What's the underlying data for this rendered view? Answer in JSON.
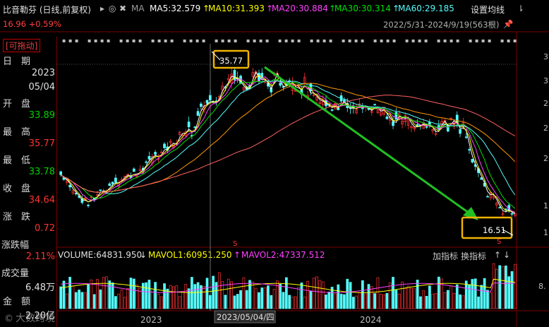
{
  "header": {
    "title": "比音勒芬 (日线,前复权)",
    "ma_label": "MA",
    "ma5": "MA5:32.579",
    "ma10": "MA10:31.393",
    "ma20": "MA20:30.884",
    "ma30": "MA30:30.314",
    "ma60": "MA60:29.185",
    "settings": "设置均线",
    "price_change": "16.96 +0.59%",
    "date_range": "2022/5/31-2024/9/19(563根)"
  },
  "left_panel": {
    "drag_tag": "[可拖动]",
    "rows": [
      {
        "key": "日　期",
        "value": "2023"
      },
      {
        "key": "",
        "value": "05/04"
      },
      {
        "key": "开　盘",
        "value": "33.89"
      },
      {
        "key": "最　高",
        "value": "35.77"
      },
      {
        "key": "最　低",
        "value": "33.78"
      },
      {
        "key": "收　盘",
        "value": "34.64"
      },
      {
        "key": "涨　跌",
        "value": "0.72"
      },
      {
        "key": "涨跌幅",
        "value": "2.11%"
      },
      {
        "key": "成交量",
        "value": ""
      },
      {
        "key": "",
        "value": "6.48万"
      },
      {
        "key": "金　额",
        "value": "2.20亿"
      }
    ]
  },
  "volume_header": {
    "volume": "VOLUME:64831.950",
    "mavol1": "MAVOL1:60951.250",
    "mavol2": "MAVOL2:47337.512",
    "add_indicator": "加指标",
    "switch_indicator": "换指标"
  },
  "annotations": {
    "high_label": "35.77",
    "low_label": "16.51",
    "cursor_date": "2023/05/04/四"
  },
  "x_axis": [
    "2023",
    "2024"
  ],
  "y_axis_right": [
    "3",
    "3",
    "2",
    "2",
    "2",
    "1",
    "1"
  ],
  "vol_axis_right": "8.",
  "watermark": "大数跨境",
  "colors": {
    "up": "#ff3232",
    "down": "#54fcfc",
    "ma5": "#ffffff",
    "ma10": "#ffff00",
    "ma20": "#ff40ff",
    "ma30": "#00e000",
    "ma60": "#54fcfc",
    "arrow": "#22c022",
    "box": "#f0b400"
  },
  "chart_data": {
    "type": "candlestick",
    "symbol": "比音勒芬",
    "period": "2022/5/31-2024/9/19",
    "bars": 563,
    "cursor": {
      "date": "2023/05/04",
      "open": 33.89,
      "high": 35.77,
      "low": 33.78,
      "close": 34.64,
      "change": 0.72,
      "change_pct": "2.11%",
      "volume": "6.48万",
      "amount": "2.20亿"
    },
    "marked_high": 35.77,
    "marked_low": 16.51,
    "last_price": 16.96,
    "last_change_pct": "+0.59%",
    "ma_latest": {
      "MA5": 32.579,
      "MA10": 31.393,
      "MA20": 30.884,
      "MA30": 30.314,
      "MA60": 29.185
    },
    "volume_latest": {
      "VOLUME": 64831.95,
      "MAVOL1": 60951.25,
      "MAVOL2": 47337.512
    },
    "price_path": [
      {
        "t": 0.0,
        "p": 22.0
      },
      {
        "t": 0.03,
        "p": 19.5
      },
      {
        "t": 0.06,
        "p": 18.2
      },
      {
        "t": 0.1,
        "p": 20.0
      },
      {
        "t": 0.14,
        "p": 21.5
      },
      {
        "t": 0.18,
        "p": 22.5
      },
      {
        "t": 0.22,
        "p": 24.5
      },
      {
        "t": 0.26,
        "p": 26.5
      },
      {
        "t": 0.29,
        "p": 27.5
      },
      {
        "t": 0.32,
        "p": 31.0
      },
      {
        "t": 0.34,
        "p": 30.2
      },
      {
        "t": 0.37,
        "p": 34.6
      },
      {
        "t": 0.4,
        "p": 33.2
      },
      {
        "t": 0.43,
        "p": 34.2
      },
      {
        "t": 0.46,
        "p": 32.8
      },
      {
        "t": 0.5,
        "p": 33.6
      },
      {
        "t": 0.53,
        "p": 33.0
      },
      {
        "t": 0.57,
        "p": 30.5
      },
      {
        "t": 0.61,
        "p": 30.6
      },
      {
        "t": 0.65,
        "p": 29.8
      },
      {
        "t": 0.69,
        "p": 30.3
      },
      {
        "t": 0.72,
        "p": 28.5
      },
      {
        "t": 0.75,
        "p": 28.8
      },
      {
        "t": 0.78,
        "p": 27.4
      },
      {
        "t": 0.81,
        "p": 27.9
      },
      {
        "t": 0.84,
        "p": 27.5
      },
      {
        "t": 0.87,
        "p": 28.6
      },
      {
        "t": 0.89,
        "p": 27.0
      },
      {
        "t": 0.91,
        "p": 23.0
      },
      {
        "t": 0.93,
        "p": 20.5
      },
      {
        "t": 0.95,
        "p": 18.6
      },
      {
        "t": 0.97,
        "p": 17.4
      },
      {
        "t": 1.0,
        "p": 16.96
      }
    ]
  }
}
